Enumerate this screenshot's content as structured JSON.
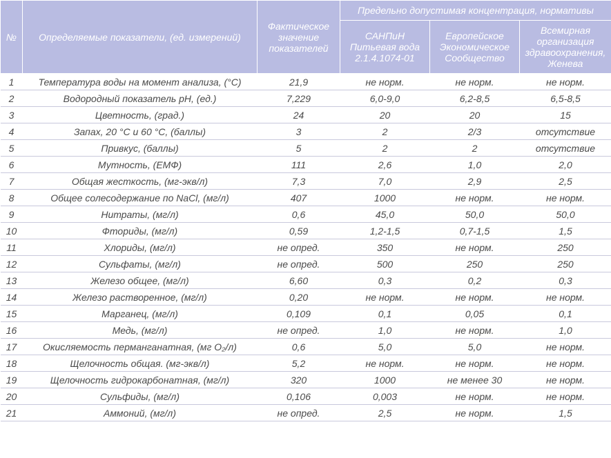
{
  "header": {
    "num": "№",
    "param": "Определяемые показатели,\n(ед. измерений)",
    "actual": "Фактическое значение показателей",
    "group": "Предельно допустимая концентрация, нормативы",
    "sanpin": "САНПиН Питьевая вода 2.1.4.1074-01",
    "eec": "Европейское Экономическое Сообщество",
    "who": "Всемирная организация здравоохранения, Женева"
  },
  "rows": [
    {
      "n": "1",
      "p": "Температура воды на момент анализа, (°C)",
      "a": "21,9",
      "s": "не норм.",
      "e": "не норм.",
      "w": "не норм."
    },
    {
      "n": "2",
      "p": "Водородный показатель pH, (ед.)",
      "a": "7,229",
      "s": "6,0-9,0",
      "e": "6,2-8,5",
      "w": "6,5-8,5"
    },
    {
      "n": "3",
      "p": "Цветность, (град.)",
      "a": "24",
      "s": "20",
      "e": "20",
      "w": "15"
    },
    {
      "n": "4",
      "p": "Запах, 20 °C и 60 °C, (баллы)",
      "a": "3",
      "s": "2",
      "e": "2/3",
      "w": "отсутствие"
    },
    {
      "n": "5",
      "p": "Привкус, (баллы)",
      "a": "5",
      "s": "2",
      "e": "2",
      "w": "отсутствие"
    },
    {
      "n": "6",
      "p": "Мутность, (ЕМФ)",
      "a": "111",
      "s": "2,6",
      "e": "1,0",
      "w": "2,0"
    },
    {
      "n": "7",
      "p": "Общая жесткость, (мг-экв/л)",
      "a": "7,3",
      "s": "7,0",
      "e": "2,9",
      "w": "2,5"
    },
    {
      "n": "8",
      "p": "Общее солесодержание по NaCl, (мг/л)",
      "a": "407",
      "s": "1000",
      "e": "не норм.",
      "w": "не норм."
    },
    {
      "n": "9",
      "p": "Нитраты, (мг/л)",
      "a": "0,6",
      "s": "45,0",
      "e": "50,0",
      "w": "50,0"
    },
    {
      "n": "10",
      "p": "Фториды, (мг/л)",
      "a": "0,59",
      "s": "1,2-1,5",
      "e": "0,7-1,5",
      "w": "1,5"
    },
    {
      "n": "11",
      "p": "Хлориды, (мг/л)",
      "a": "не опред.",
      "s": "350",
      "e": "не норм.",
      "w": "250"
    },
    {
      "n": "12",
      "p": "Сульфаты, (мг/л)",
      "a": "не опред.",
      "s": "500",
      "e": "250",
      "w": "250"
    },
    {
      "n": "13",
      "p": "Железо общее, (мг/л)",
      "a": "6,60",
      "s": "0,3",
      "e": "0,2",
      "w": "0,3"
    },
    {
      "n": "14",
      "p": "Железо растворенное, (мг/л)",
      "a": "0,20",
      "s": "не норм.",
      "e": "не норм.",
      "w": "не норм."
    },
    {
      "n": "15",
      "p": "Марганец, (мг/л)",
      "a": "0,109",
      "s": "0,1",
      "e": "0,05",
      "w": "0,1"
    },
    {
      "n": "16",
      "p": "Медь, (мг/л)",
      "a": "не опред.",
      "s": "1,0",
      "e": "не норм.",
      "w": "1,0"
    },
    {
      "n": "17",
      "p": "Окисляемость перманганатная, (мг O₂/л)",
      "a": "0,6",
      "s": "5,0",
      "e": "5,0",
      "w": "не норм."
    },
    {
      "n": "18",
      "p": "Щелочность общая. (мг-экв/л)",
      "a": "5,2",
      "s": "не норм.",
      "e": "не норм.",
      "w": "не норм."
    },
    {
      "n": "19",
      "p": "Щелочность гидрокарбонатная, (мг/л)",
      "a": "320",
      "s": "1000",
      "e": "не менее 30",
      "w": "не норм."
    },
    {
      "n": "20",
      "p": "Сульфиды, (мг/л)",
      "a": "0,106",
      "s": "0,003",
      "e": "не норм.",
      "w": "не норм."
    },
    {
      "n": "21",
      "p": "Аммоний, (мг/л)",
      "a": "не опред.",
      "s": "2,5",
      "e": "не норм.",
      "w": "1,5"
    }
  ]
}
